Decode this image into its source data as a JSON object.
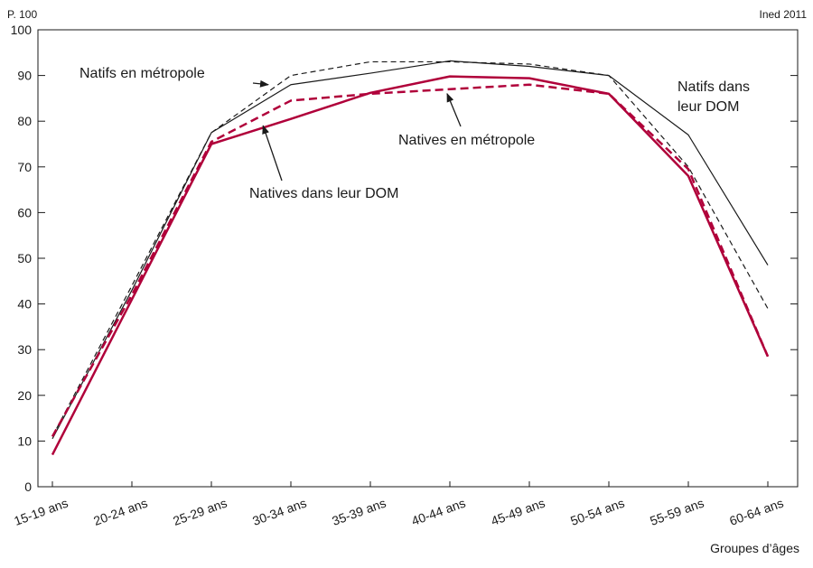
{
  "chart_data": {
    "type": "line",
    "unit_label": "P. 100",
    "source": "Ined 2011",
    "xlabel": "Groupes d’âges",
    "ylabel": "",
    "ylim": [
      0,
      100
    ],
    "yticks": [
      0,
      10,
      20,
      30,
      40,
      50,
      60,
      70,
      80,
      90,
      100
    ],
    "categories": [
      "15-19 ans",
      "20-24 ans",
      "25-29 ans",
      "30-34 ans",
      "35-39 ans",
      "40-44 ans",
      "45-49 ans",
      "50-54 ans",
      "55-59 ans",
      "60-64 ans"
    ],
    "grid": false,
    "series": [
      {
        "name": "Natifs en métropole",
        "color": "#1a1a1a",
        "dash": true,
        "width": 1.2,
        "values": [
          11,
          44,
          77.5,
          90,
          93,
          93,
          92.5,
          90,
          70,
          39
        ]
      },
      {
        "name": "Natifs dans leur DOM",
        "color": "#1a1a1a",
        "dash": false,
        "width": 1.2,
        "values": [
          10.5,
          43,
          77.5,
          88,
          90.5,
          93.2,
          92,
          90,
          77,
          48.5
        ]
      },
      {
        "name": "Natives en métropole",
        "color": "#b0003a",
        "dash": true,
        "width": 2.5,
        "values": [
          11,
          42,
          75.5,
          84.5,
          86,
          87,
          88,
          86,
          69.5,
          28.5
        ]
      },
      {
        "name": "Natives dans leur DOM",
        "color": "#b0003a",
        "dash": false,
        "width": 2.5,
        "values": [
          7,
          41,
          75,
          80.5,
          86.2,
          89.8,
          89.4,
          86,
          68,
          28.5
        ]
      }
    ],
    "annotations": [
      {
        "text": "Natifs en métropole",
        "series": 0
      },
      {
        "text": "Natives en métropole",
        "series": 2
      },
      {
        "text": "Natives dans leur DOM",
        "series": 3
      },
      {
        "text": "Natifs dans leur DOM",
        "series": 1
      }
    ]
  }
}
